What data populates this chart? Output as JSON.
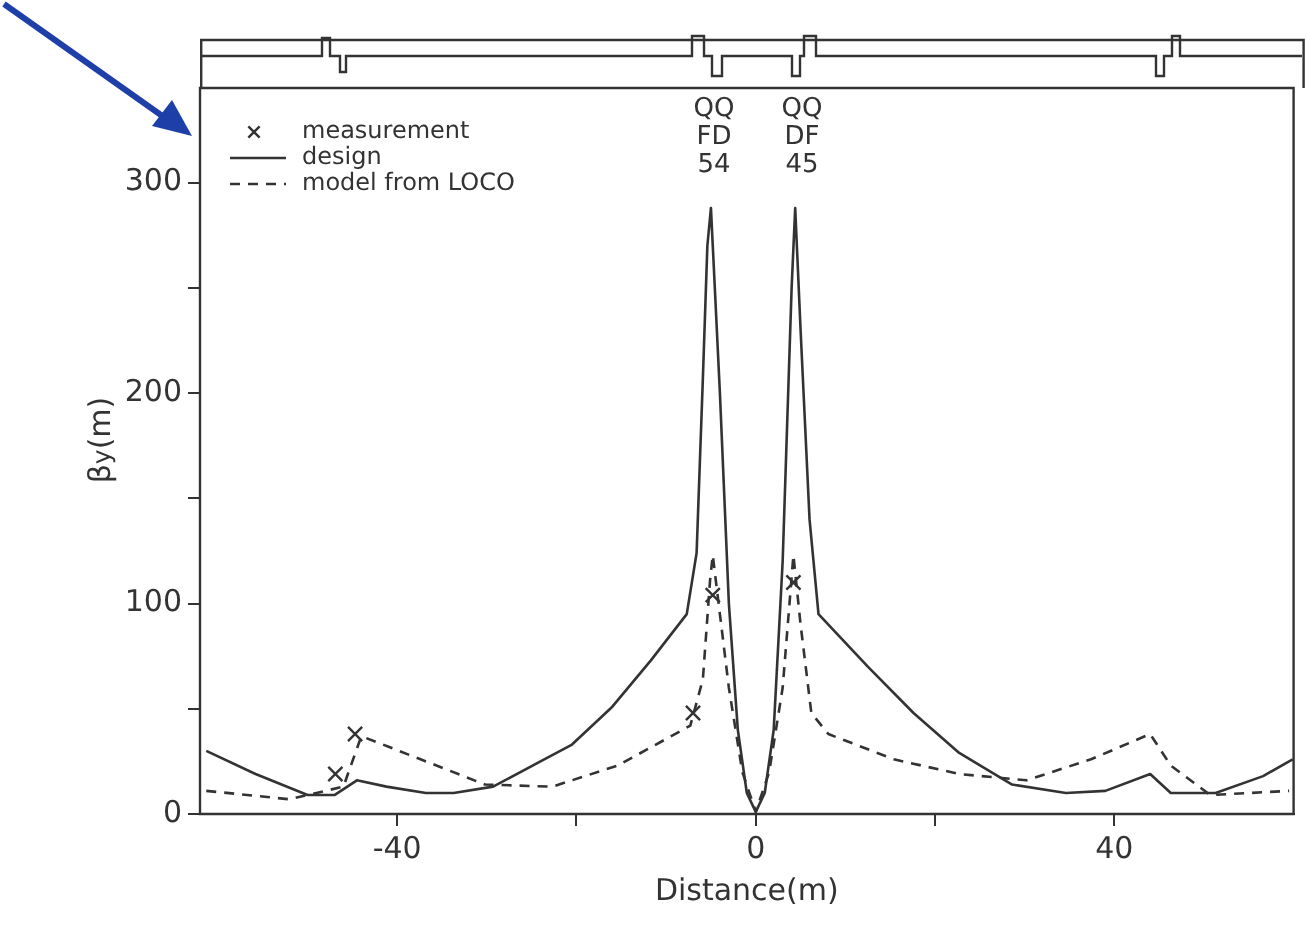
{
  "chart_data": {
    "type": "line",
    "xlabel": "Distance(m)",
    "ylabel": "β$_{y}$(m)",
    "xlim": [
      -62,
      60
    ],
    "xticks": [
      -40,
      {
        "value": -20,
        "label": null
      },
      0,
      {
        "value": 20,
        "label": null
      },
      40
    ],
    "ylim": [
      0,
      345
    ],
    "yticks": [
      0,
      {
        "value": 50,
        "label": null
      },
      100,
      {
        "value": 150,
        "label": null
      },
      200,
      {
        "value": 250,
        "label": null
      },
      300
    ],
    "grid": false,
    "legend": "top left",
    "series": [
      {
        "name": "measurement",
        "type": "scatter",
        "marker": "cross",
        "color": "#333333",
        "x": [
          -46.9,
          -44.7,
          -7,
          -4.8,
          4.2
        ],
        "values": [
          19,
          38,
          48,
          104,
          110
        ]
      },
      {
        "name": "design",
        "marker": "none",
        "line_style": "solid",
        "color": "#333333",
        "x": [
          -61.3,
          -55.8,
          -50,
          -47,
          -44.5,
          -41.2,
          -36.8,
          -33.7,
          -29.3,
          -24.9,
          -20.5,
          -16,
          -11.7,
          -7.7,
          -6.6,
          -5.9,
          -5.4,
          -5,
          -4,
          -3,
          -2,
          -1,
          0,
          1,
          2,
          3,
          4,
          4.4,
          5,
          6,
          7,
          12.5,
          17.6,
          22.7,
          28.6,
          34.6,
          39,
          44,
          46.3,
          51.3,
          56.6,
          59.9
        ],
        "values": [
          30,
          19,
          9,
          9,
          16,
          13,
          10,
          10,
          13,
          23,
          33,
          51,
          73,
          95,
          124,
          207,
          270,
          288,
          200,
          100,
          40,
          10,
          1,
          10,
          40,
          120,
          250,
          288,
          230,
          140,
          95,
          70,
          48,
          29,
          14,
          10,
          11,
          19,
          10,
          10,
          18,
          26
        ]
      },
      {
        "name": "model from LOCO",
        "marker": "none",
        "line_style": "dashed",
        "color": "#333333",
        "x": [
          -61.3,
          -52,
          -46,
          -44,
          -37.4,
          -30.2,
          -22.7,
          -15.4,
          -7.3,
          -5.9,
          -5.1,
          -4.8,
          -3,
          -1.5,
          0,
          1.5,
          3,
          4.2,
          5,
          6.2,
          8.1,
          15.4,
          22.7,
          30.2,
          37.4,
          44,
          46.3,
          50.7,
          59.5
        ],
        "values": [
          11,
          7,
          13,
          37,
          26,
          14,
          13,
          23,
          42,
          64,
          111,
          123,
          60,
          20,
          1,
          20,
          60,
          123,
          90,
          48,
          38,
          26,
          19,
          16,
          26,
          38,
          23,
          9,
          11
        ]
      }
    ],
    "annotations": [
      "QQ FD 54",
      "QQ DF 45"
    ]
  }
}
